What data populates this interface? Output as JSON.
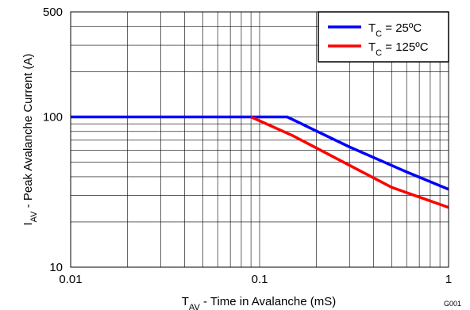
{
  "chart_data": {
    "type": "line",
    "x_scale": "log",
    "y_scale": "log",
    "xlim": [
      0.01,
      1
    ],
    "ylim": [
      10,
      500
    ],
    "grid": true,
    "legend_position": "top-right",
    "x_ticks": [
      "0.01",
      "0.1",
      "1"
    ],
    "y_ticks": [
      "10",
      "100",
      "500"
    ],
    "xlabel": {
      "main": "T",
      "sub": "AV",
      "rest": " - Time in Avalanche (mS)"
    },
    "ylabel": {
      "main": "I",
      "sub": "AV",
      "rest": " - Peak Avalanche Current (A)"
    },
    "series": [
      {
        "name": {
          "main": "T",
          "sub": "C",
          "rest": " = 25ºC"
        },
        "color": "#0000ff",
        "x": [
          0.01,
          0.14,
          0.3,
          0.6,
          1.0
        ],
        "y": [
          100,
          100,
          63,
          43,
          33
        ]
      },
      {
        "name": {
          "main": "T",
          "sub": "C",
          "rest": " = 125ºC"
        },
        "color": "#ff0000",
        "x": [
          0.09,
          0.15,
          0.5,
          1.0
        ],
        "y": [
          100,
          75,
          34,
          25
        ]
      }
    ],
    "annotation": "G001"
  }
}
